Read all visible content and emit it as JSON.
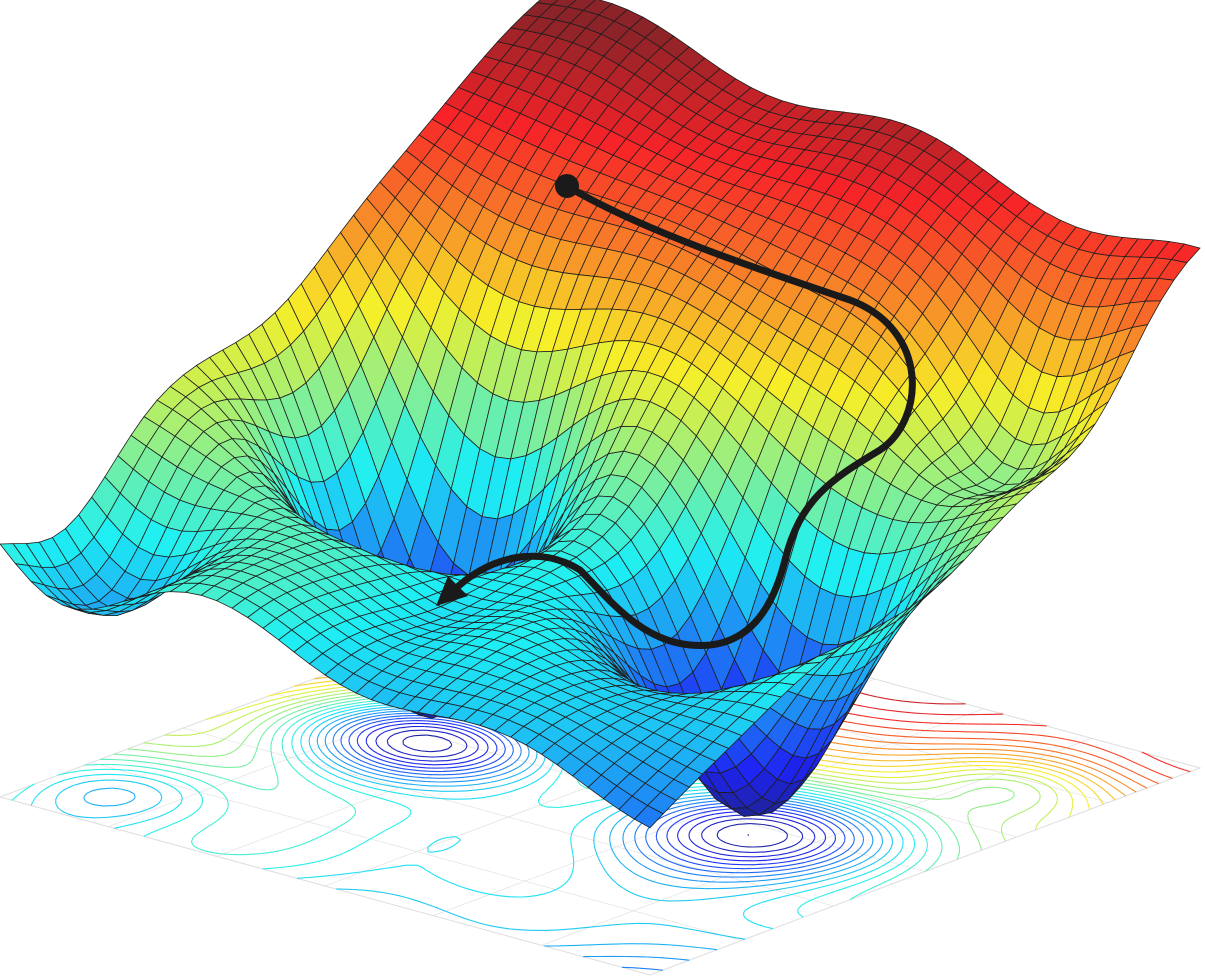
{
  "figure": {
    "kind": "3d-surface-with-contour-projection",
    "colormap": "jet",
    "background": "#ffffff",
    "path_color": "#1a1a1a",
    "start_marker_color": "#1a1a1a",
    "mesh_line_color": "#1e1e1e",
    "floor_grid_color": "#dddddd"
  }
}
